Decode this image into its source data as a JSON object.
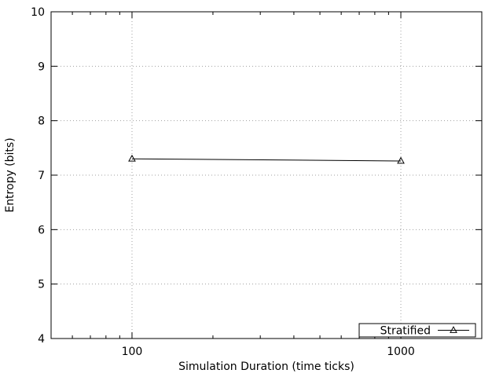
{
  "chart_data": {
    "type": "line",
    "xlabel": "Simulation Duration (time ticks)",
    "ylabel": "Entropy (bits)",
    "x_scale": "log",
    "xlim": [
      50,
      2000
    ],
    "ylim": [
      4,
      10
    ],
    "x_ticks": [
      100,
      1000
    ],
    "x_tick_labels": [
      "100",
      "1000"
    ],
    "y_ticks": [
      4,
      5,
      6,
      7,
      8,
      9,
      10
    ],
    "y_tick_labels": [
      "4",
      "5",
      "6",
      "7",
      "8",
      "9",
      "10"
    ],
    "grid": true,
    "legend_position": "bottom-right",
    "series": [
      {
        "name": "Stratified",
        "marker": "triangle-open",
        "color": "#000000",
        "x": [
          100,
          1000
        ],
        "y": [
          7.3,
          7.26
        ]
      }
    ]
  }
}
